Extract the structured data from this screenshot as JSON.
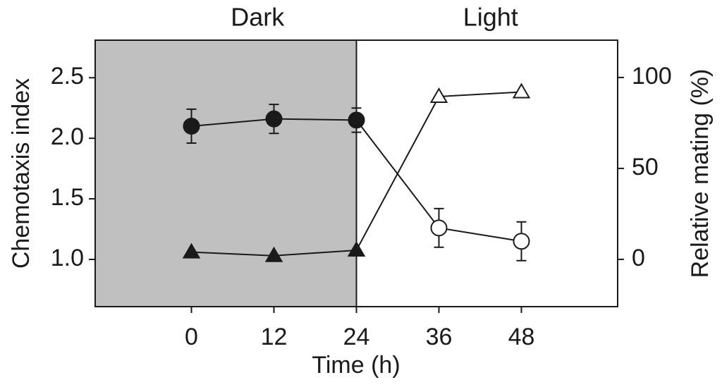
{
  "chart_data": {
    "type": "line",
    "labels": [
      "Dark",
      "Light"
    ],
    "shaded_until": 24,
    "shade_color": "#c0c0c0",
    "xlabel": "Time (h)",
    "ylabel": "Chemotaxis index",
    "y2label": "Relative mating (%)",
    "x": [
      0,
      12,
      24,
      36,
      48
    ],
    "xlim": [
      -14,
      62
    ],
    "xticks": [
      0,
      12,
      24,
      36,
      48
    ],
    "ylim": [
      0.61,
      2.81
    ],
    "yticks": [
      {
        "value": 1.0,
        "label": "1.0"
      },
      1.5,
      {
        "value": 2.0,
        "label": "2.0"
      },
      2.5
    ],
    "y2lim": [
      -26,
      120.5
    ],
    "y2ticks": [
      0,
      50,
      100
    ],
    "series": [
      {
        "color": "#1a1a1a",
        "marker": "circle",
        "fills": [
          "#1a1a1a",
          "#1a1a1a",
          "#1a1a1a",
          "#ffffff",
          "#ffffff"
        ],
        "values": [
          2.1,
          2.16,
          2.15,
          1.26,
          1.15
        ],
        "errors": [
          0.14,
          0.12,
          0.1,
          0.16,
          0.16
        ]
      },
      {
        "color": "#1a1a1a",
        "marker": "triangle",
        "axis": "y2",
        "fills": [
          "#1a1a1a",
          "#1a1a1a",
          "#1a1a1a",
          "#ffffff",
          "#ffffff"
        ],
        "values": [
          4,
          2,
          5,
          89.5,
          92
        ]
      }
    ]
  }
}
